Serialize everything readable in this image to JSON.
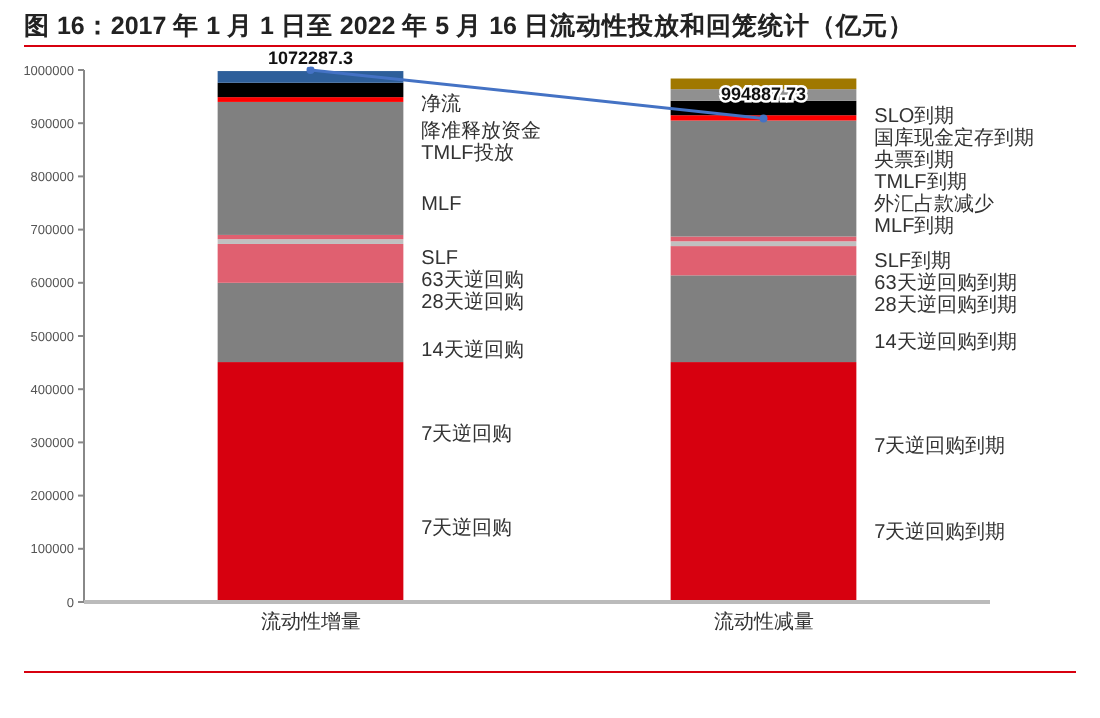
{
  "chart_data": {
    "type": "bar",
    "title": "图 16：2017 年 1 月 1 日至 2022 年 5 月 16 日流动性投放和回笼统计（亿元）",
    "stacked": true,
    "marker": "circle",
    "categories": [
      "流动性增量",
      "流动性减量"
    ],
    "ylim": [
      0,
      1000000
    ],
    "yticks": [
      0,
      100000,
      200000,
      300000,
      400000,
      500000,
      600000,
      700000,
      800000,
      900000,
      1000000
    ],
    "series": [
      {
        "color": "#d7000f",
        "values": [
          451000,
          451000
        ]
      },
      {
        "color": "#808080",
        "values": [
          149000,
          163000
        ]
      },
      {
        "color": "#e06070",
        "values": [
          73000,
          55000
        ]
      },
      {
        "color": "#c0c0c0",
        "values": [
          9000,
          9000
        ]
      },
      {
        "color": "#e06070",
        "values": [
          8000,
          9000
        ]
      },
      {
        "color": "#808080",
        "values": [
          250000,
          218000
        ]
      },
      {
        "color": "#ff0000",
        "values": [
          9000,
          10000
        ]
      },
      {
        "color": "#000000",
        "values": [
          27000,
          27000
        ]
      },
      {
        "color": "#2e5f9a",
        "values": [
          22000,
          null
        ]
      },
      {
        "color": "#909090",
        "values": [
          null,
          22000
        ]
      },
      {
        "color": "#a07800",
        "values": [
          null,
          20000
        ]
      },
      {
        "type": "line",
        "color": "#4472c4",
        "values": [
          1000000,
          909000
        ]
      }
    ],
    "annotations": [
      "1072287.3",
      "994887.73",
      "净流",
      "降准释放资金",
      "TMLF投放",
      "MLF",
      "SLF",
      "63天逆回购",
      "28天逆回购",
      "14天逆回购",
      "7天逆回购",
      "7天逆回购",
      "SLO到期",
      "国库现金定存到期",
      "央票到期",
      "TMLF到期",
      "外汇占款减少",
      "MLF到期",
      "SLF到期",
      "63天逆回购到期",
      "28天逆回购到期",
      "14天逆回购到期",
      "7天逆回购到期",
      "7天逆回购到期"
    ]
  }
}
